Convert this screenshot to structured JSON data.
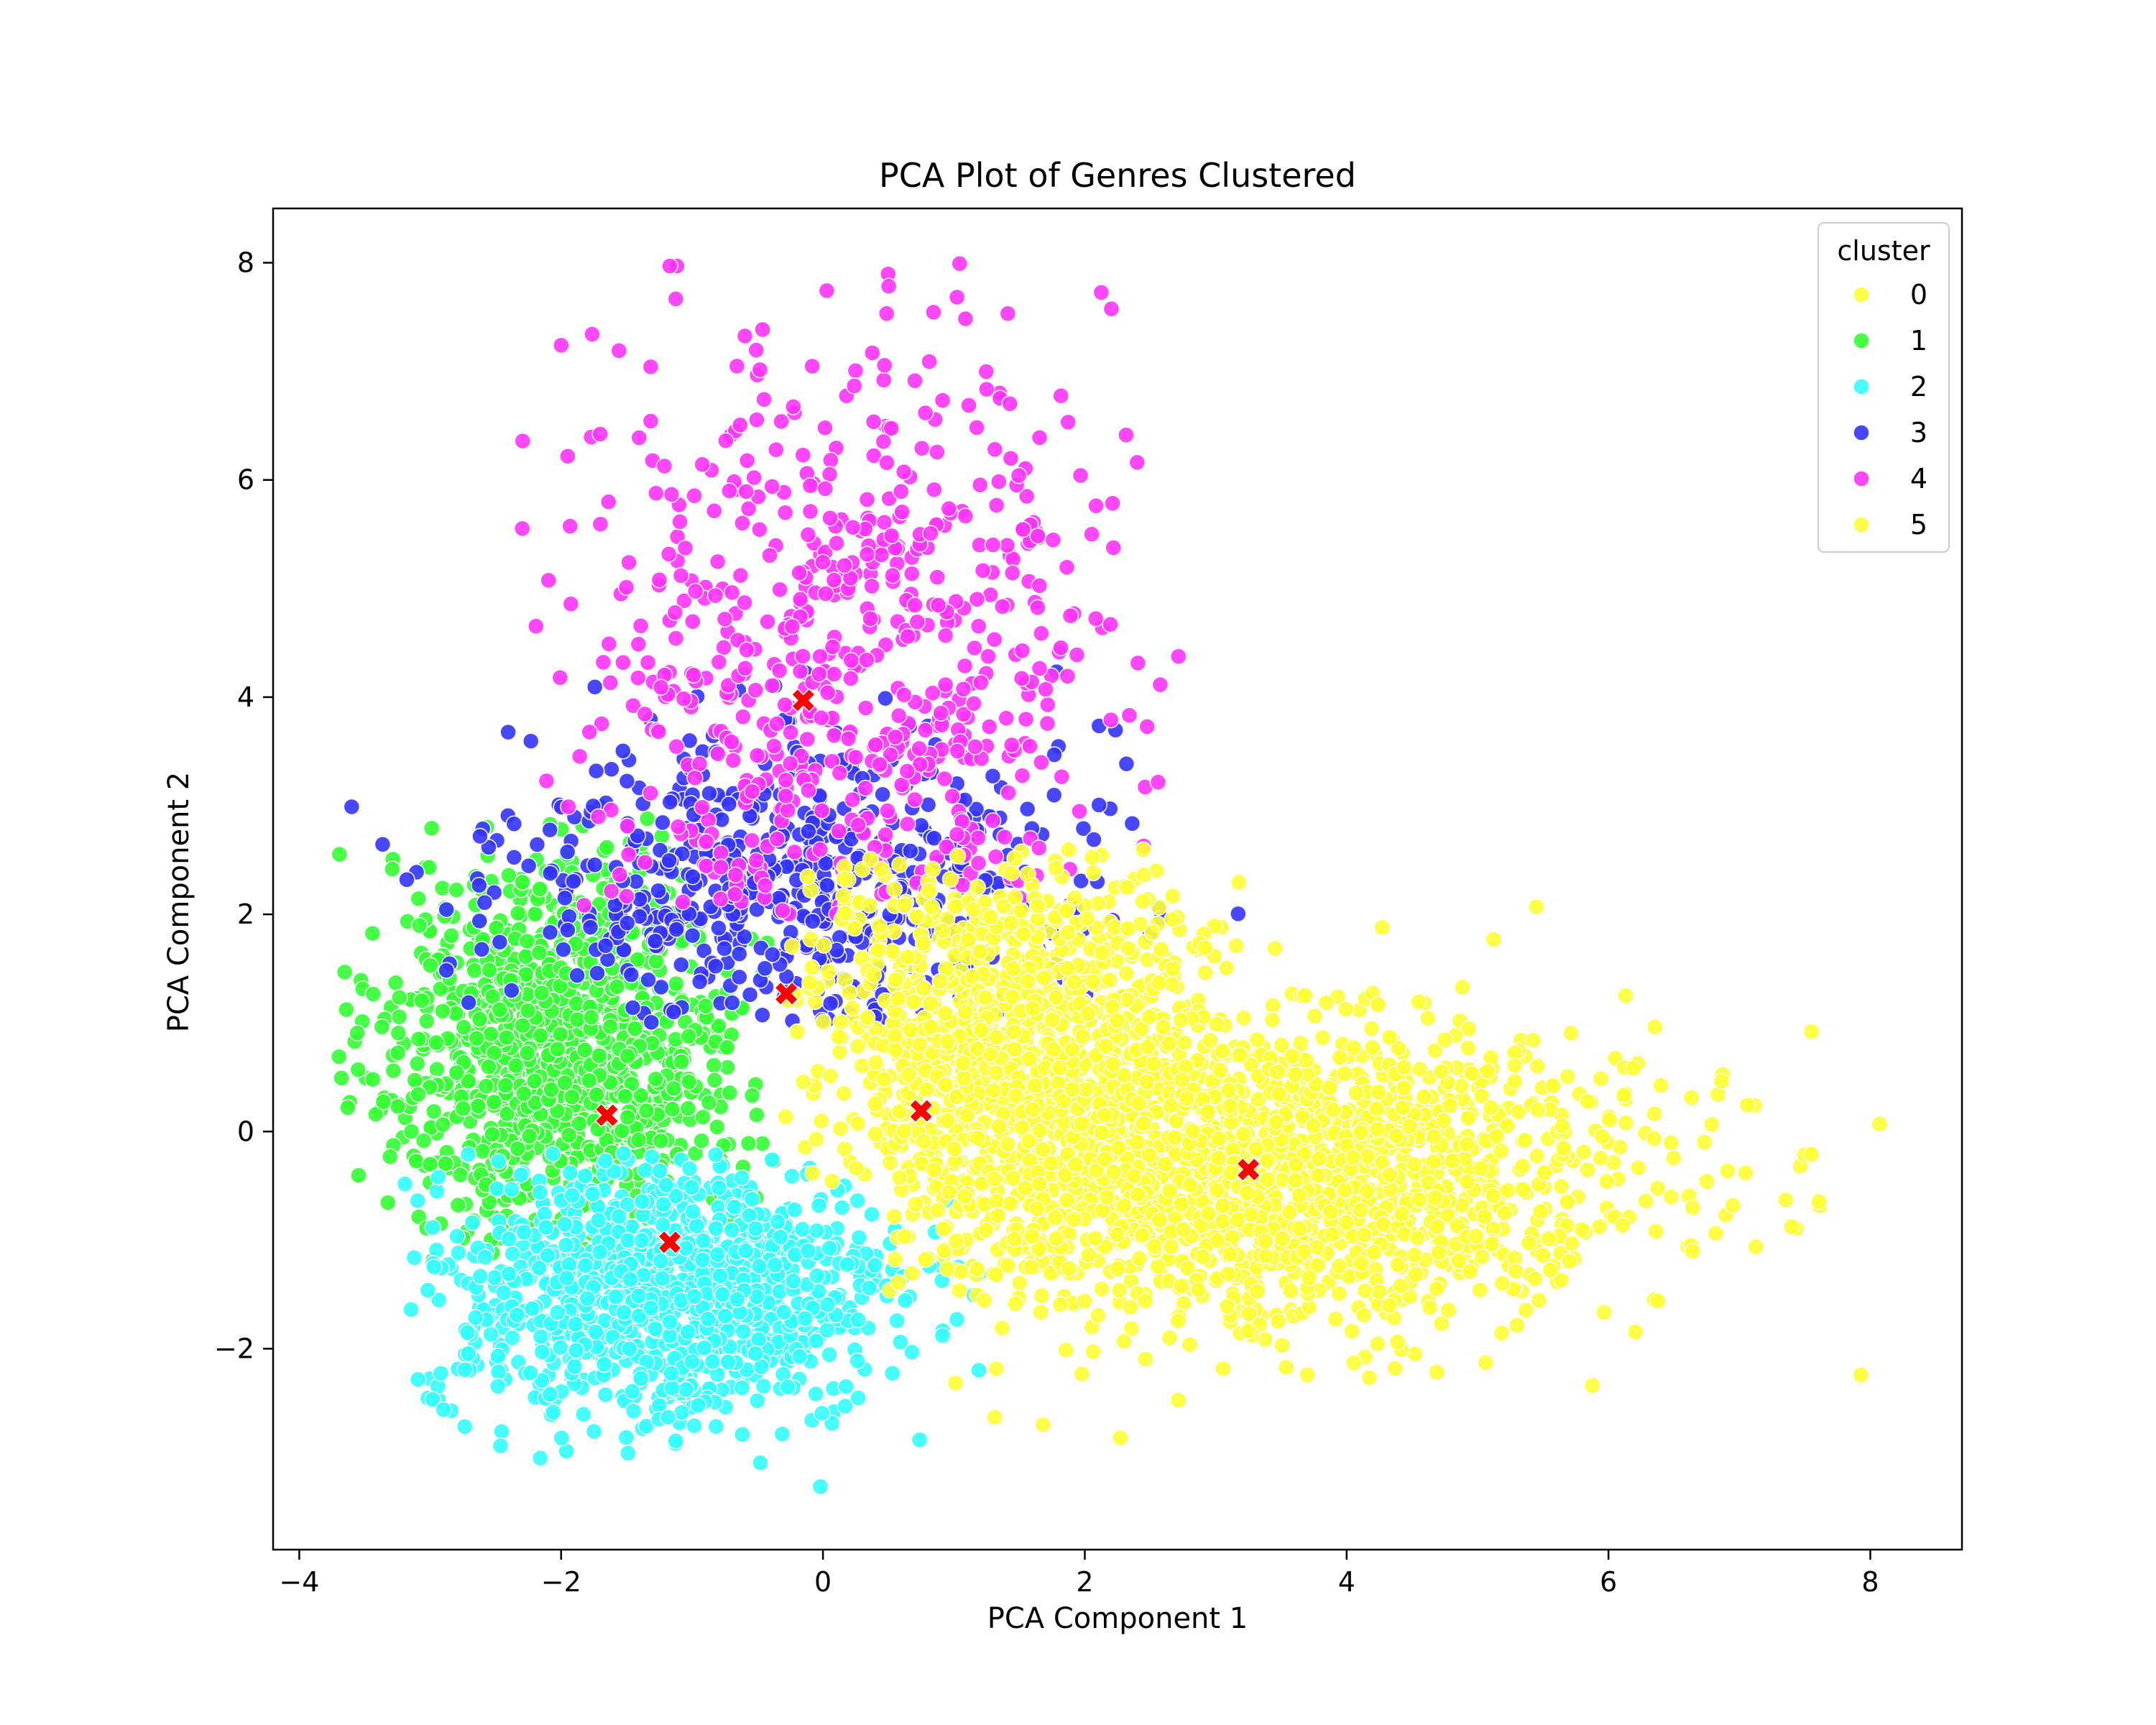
{
  "chart_data": {
    "type": "scatter",
    "title": "PCA Plot of Genres Clustered",
    "xlabel": "PCA Component 1",
    "ylabel": "PCA Component 2",
    "xlim": [
      -4.2,
      8.7
    ],
    "ylim": [
      -3.85,
      8.5
    ],
    "xticks": [
      -4,
      -2,
      0,
      2,
      4,
      6,
      8
    ],
    "yticks": [
      -2,
      0,
      2,
      4,
      6,
      8
    ],
    "grid": false,
    "legend": {
      "title": "cluster",
      "placement": "top-right"
    },
    "series": [
      {
        "name": "0",
        "color": "#ffff33",
        "approx_count": 900,
        "center": [
          1.5,
          1.0
        ],
        "spread": [
          0.9,
          0.8
        ],
        "x_range": [
          -0.3,
          3.2
        ],
        "y_range": [
          -0.5,
          2.6
        ]
      },
      {
        "name": "1",
        "color": "#33ff33",
        "approx_count": 1100,
        "center": [
          -2.0,
          0.8
        ],
        "spread": [
          0.7,
          0.9
        ],
        "x_range": [
          -3.7,
          -0.3
        ],
        "y_range": [
          -1.2,
          2.9
        ]
      },
      {
        "name": "2",
        "color": "#33ffff",
        "approx_count": 1100,
        "center": [
          -1.2,
          -1.5
        ],
        "spread": [
          0.9,
          0.6
        ],
        "x_range": [
          -3.2,
          1.2
        ],
        "y_range": [
          -3.3,
          -0.2
        ]
      },
      {
        "name": "3",
        "color": "#3333ff",
        "approx_count": 600,
        "center": [
          -0.3,
          2.3
        ],
        "spread": [
          1.1,
          0.7
        ],
        "x_range": [
          -3.6,
          3.3
        ],
        "y_range": [
          1.0,
          4.6
        ]
      },
      {
        "name": "4",
        "color": "#ff33ff",
        "approx_count": 650,
        "center": [
          0.2,
          4.3
        ],
        "spread": [
          1.0,
          1.5
        ],
        "x_range": [
          -2.5,
          3.4
        ],
        "y_range": [
          2.0,
          8.0
        ]
      },
      {
        "name": "5",
        "color": "#ffff33",
        "approx_count": 1800,
        "center": [
          3.2,
          -0.4
        ],
        "spread": [
          1.5,
          0.7
        ],
        "x_range": [
          0.5,
          8.1
        ],
        "y_range": [
          -2.8,
          2.1
        ]
      }
    ],
    "centroids": [
      {
        "x": -0.15,
        "y": 3.97
      },
      {
        "x": -0.28,
        "y": 1.27
      },
      {
        "x": -1.65,
        "y": 0.15
      },
      {
        "x": 0.75,
        "y": 0.19
      },
      {
        "x": 3.25,
        "y": -0.35
      },
      {
        "x": -1.17,
        "y": -1.02
      }
    ],
    "centroid_color": "#ff0000",
    "notable_outliers": [
      {
        "x": 8.07,
        "y": 0.07
      },
      {
        "x": 7.55,
        "y": 0.92
      },
      {
        "x": 7.55,
        "y": -0.21
      },
      {
        "x": 6.95,
        "y": -0.68
      },
      {
        "x": 6.13,
        "y": 1.25
      },
      {
        "x": 2.27,
        "y": -2.82
      },
      {
        "x": 1.68,
        "y": -2.7
      },
      {
        "x": -0.02,
        "y": -3.27
      },
      {
        "x": -1.17,
        "y": 7.97
      },
      {
        "x": -2.0,
        "y": 7.24
      },
      {
        "x": -3.6,
        "y": 2.99
      },
      {
        "x": -3.63,
        "y": 0.22
      }
    ]
  }
}
